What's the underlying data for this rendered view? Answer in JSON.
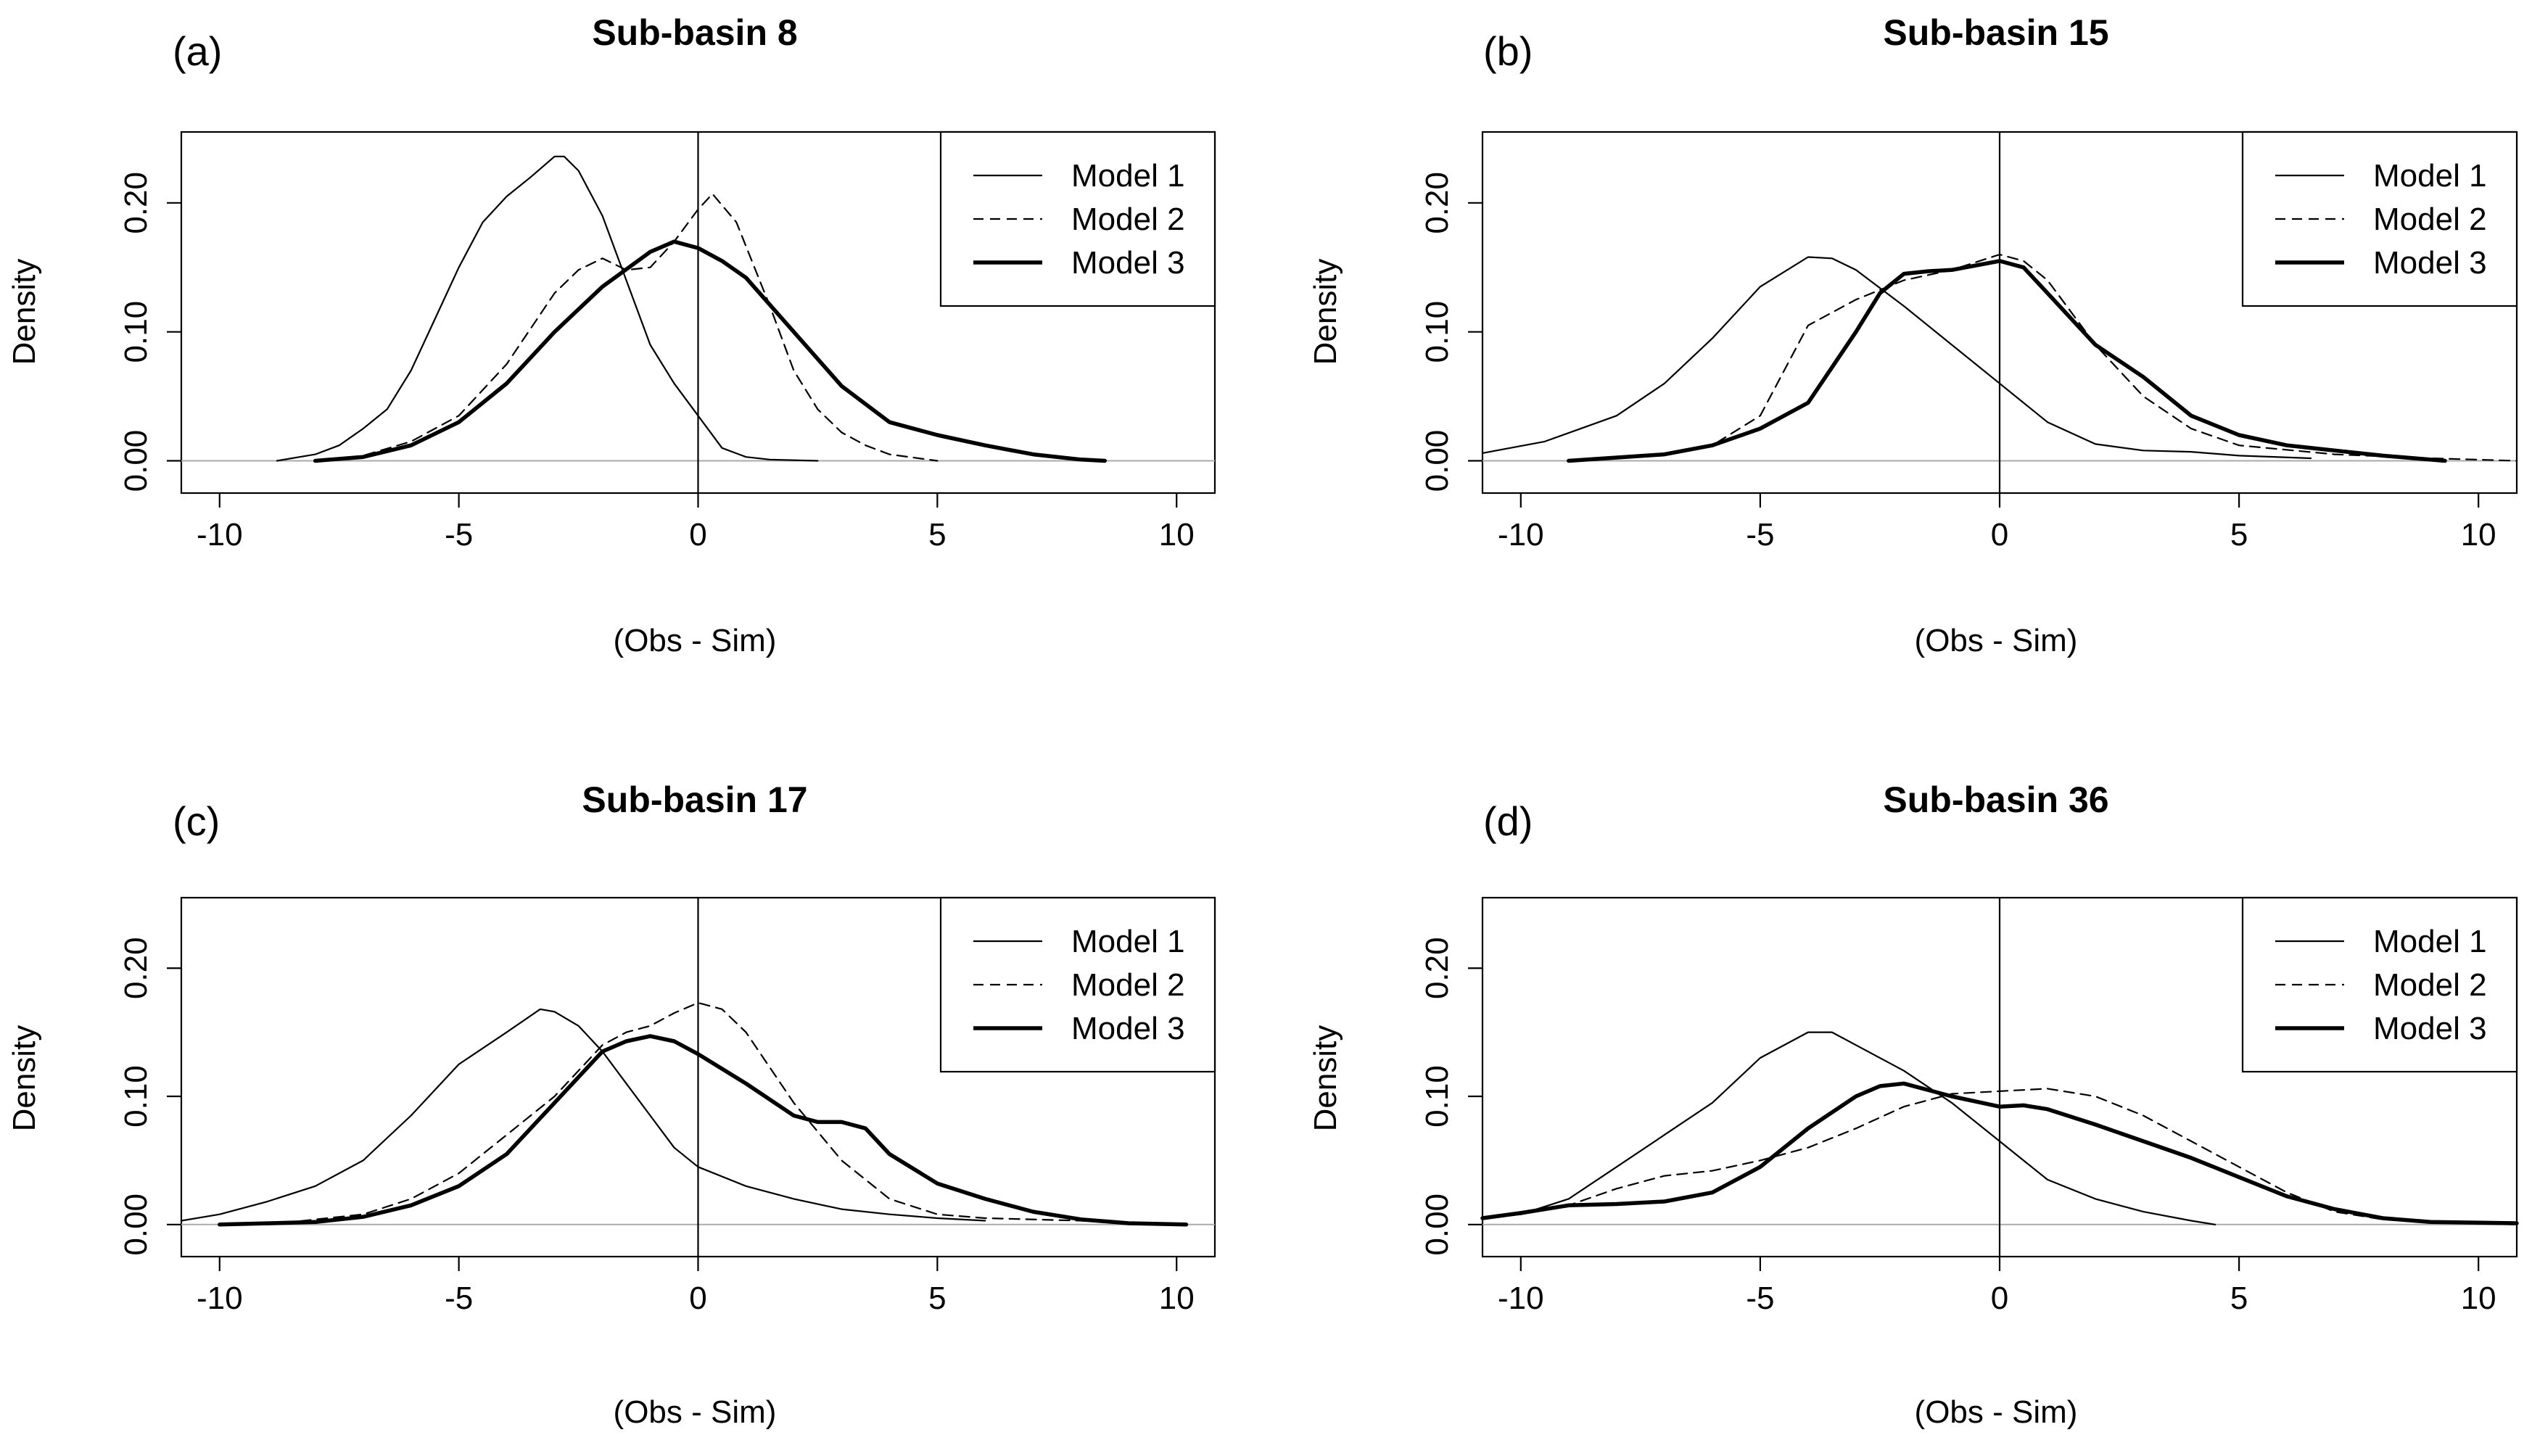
{
  "figure": {
    "panels_layout": "2x2"
  },
  "chart_data": [
    {
      "type": "line",
      "panel_label": "(a)",
      "title": "Sub-basin 8",
      "xlabel": "(Obs - Sim)",
      "ylabel": "Density",
      "xlim": [
        -10.8,
        10.8
      ],
      "ylim": [
        -0.025,
        0.255
      ],
      "xticks": [
        -10,
        -5,
        0,
        5,
        10
      ],
      "yticks": [
        0.0,
        0.1,
        0.2
      ],
      "ytick_labels": [
        "0.00",
        "0.10",
        "0.20"
      ],
      "vline_x": 0,
      "hline_y": 0,
      "legend_position": "top-right",
      "series": [
        {
          "name": "Model 1",
          "style": "solid",
          "x": [
            -8.8,
            -8.0,
            -7.5,
            -7.0,
            -6.5,
            -6.0,
            -5.5,
            -5.0,
            -4.5,
            -4.0,
            -3.5,
            -3.0,
            -2.8,
            -2.5,
            -2.0,
            -1.5,
            -1.0,
            -0.5,
            0.0,
            0.5,
            1.0,
            1.5,
            2.5
          ],
          "y": [
            0.0,
            0.005,
            0.012,
            0.025,
            0.04,
            0.07,
            0.11,
            0.15,
            0.185,
            0.205,
            0.22,
            0.236,
            0.236,
            0.225,
            0.19,
            0.14,
            0.09,
            0.06,
            0.035,
            0.01,
            0.003,
            0.001,
            0.0
          ]
        },
        {
          "name": "Model 2",
          "style": "dashed",
          "x": [
            -8.0,
            -7.0,
            -6.0,
            -5.0,
            -4.0,
            -3.0,
            -2.5,
            -2.0,
            -1.5,
            -1.0,
            -0.5,
            0.0,
            0.3,
            0.8,
            1.5,
            2.0,
            2.5,
            3.0,
            3.5,
            4.0,
            5.0
          ],
          "y": [
            0.0,
            0.004,
            0.015,
            0.035,
            0.075,
            0.13,
            0.148,
            0.157,
            0.148,
            0.15,
            0.17,
            0.195,
            0.207,
            0.185,
            0.12,
            0.07,
            0.04,
            0.022,
            0.012,
            0.005,
            0.0
          ]
        },
        {
          "name": "Model 3",
          "style": "thick",
          "x": [
            -8.0,
            -7.0,
            -6.0,
            -5.0,
            -4.0,
            -3.0,
            -2.0,
            -1.0,
            -0.5,
            0.0,
            0.5,
            1.0,
            2.0,
            3.0,
            4.0,
            5.0,
            6.0,
            7.0,
            8.0,
            8.5
          ],
          "y": [
            0.0,
            0.003,
            0.012,
            0.03,
            0.06,
            0.1,
            0.135,
            0.162,
            0.17,
            0.165,
            0.155,
            0.142,
            0.1,
            0.058,
            0.03,
            0.02,
            0.012,
            0.005,
            0.001,
            0.0
          ]
        }
      ]
    },
    {
      "type": "line",
      "panel_label": "(b)",
      "title": "Sub-basin 15",
      "xlabel": "(Obs - Sim)",
      "ylabel": "Density",
      "xlim": [
        -10.8,
        10.8
      ],
      "ylim": [
        -0.025,
        0.255
      ],
      "xticks": [
        -10,
        -5,
        0,
        5,
        10
      ],
      "yticks": [
        0.0,
        0.1,
        0.2
      ],
      "ytick_labels": [
        "0.00",
        "0.10",
        "0.20"
      ],
      "vline_x": 0,
      "hline_y": 0,
      "legend_position": "top-right",
      "series": [
        {
          "name": "Model 1",
          "style": "solid",
          "x": [
            -10.8,
            -9.5,
            -8.0,
            -7.0,
            -6.0,
            -5.0,
            -4.0,
            -3.5,
            -3.0,
            -2.0,
            -1.0,
            0.0,
            1.0,
            2.0,
            3.0,
            4.0,
            5.0,
            6.5
          ],
          "y": [
            0.006,
            0.015,
            0.035,
            0.06,
            0.095,
            0.135,
            0.158,
            0.157,
            0.148,
            0.12,
            0.09,
            0.06,
            0.03,
            0.013,
            0.008,
            0.007,
            0.004,
            0.002
          ]
        },
        {
          "name": "Model 2",
          "style": "dashed",
          "x": [
            -9.0,
            -7.0,
            -6.0,
            -5.0,
            -4.5,
            -4.0,
            -3.0,
            -2.0,
            -1.0,
            0.0,
            0.5,
            1.0,
            2.0,
            3.0,
            4.0,
            5.0,
            7.0,
            9.0,
            10.8
          ],
          "y": [
            0.0,
            0.005,
            0.012,
            0.035,
            0.07,
            0.105,
            0.125,
            0.14,
            0.148,
            0.16,
            0.155,
            0.14,
            0.09,
            0.05,
            0.025,
            0.012,
            0.005,
            0.002,
            0.0
          ]
        },
        {
          "name": "Model 3",
          "style": "thick",
          "x": [
            -9.0,
            -7.0,
            -6.0,
            -5.0,
            -4.0,
            -3.0,
            -2.5,
            -2.0,
            -1.5,
            -1.0,
            0.0,
            0.5,
            1.0,
            2.0,
            3.0,
            4.0,
            5.0,
            6.0,
            7.0,
            8.0,
            9.3
          ],
          "y": [
            0.0,
            0.005,
            0.012,
            0.025,
            0.045,
            0.1,
            0.13,
            0.145,
            0.147,
            0.148,
            0.155,
            0.15,
            0.13,
            0.09,
            0.065,
            0.035,
            0.02,
            0.012,
            0.008,
            0.004,
            0.0
          ]
        }
      ]
    },
    {
      "type": "line",
      "panel_label": "(c)",
      "title": "Sub-basin 17",
      "xlabel": "(Obs - Sim)",
      "ylabel": "Density",
      "xlim": [
        -10.8,
        10.8
      ],
      "ylim": [
        -0.025,
        0.255
      ],
      "xticks": [
        -10,
        -5,
        0,
        5,
        10
      ],
      "yticks": [
        0.0,
        0.1,
        0.2
      ],
      "ytick_labels": [
        "0.00",
        "0.10",
        "0.20"
      ],
      "vline_x": 0,
      "hline_y": 0,
      "legend_position": "top-right",
      "series": [
        {
          "name": "Model 1",
          "style": "solid",
          "x": [
            -10.8,
            -10.0,
            -9.0,
            -8.0,
            -7.0,
            -6.0,
            -5.0,
            -4.0,
            -3.3,
            -3.0,
            -2.5,
            -2.0,
            -1.5,
            -1.0,
            -0.5,
            0.0,
            1.0,
            2.0,
            3.0,
            4.0,
            5.0,
            6.0
          ],
          "y": [
            0.003,
            0.008,
            0.018,
            0.03,
            0.05,
            0.085,
            0.125,
            0.15,
            0.168,
            0.166,
            0.155,
            0.135,
            0.11,
            0.085,
            0.06,
            0.045,
            0.03,
            0.02,
            0.012,
            0.008,
            0.005,
            0.003
          ]
        },
        {
          "name": "Model 2",
          "style": "dashed",
          "x": [
            -9.0,
            -7.0,
            -6.0,
            -5.0,
            -4.0,
            -3.0,
            -2.0,
            -1.5,
            -1.0,
            -0.5,
            0.0,
            0.5,
            1.0,
            2.0,
            3.0,
            4.0,
            5.0,
            6.0,
            8.0,
            10.0
          ],
          "y": [
            0.0,
            0.008,
            0.02,
            0.04,
            0.07,
            0.1,
            0.14,
            0.15,
            0.155,
            0.165,
            0.173,
            0.168,
            0.15,
            0.095,
            0.05,
            0.02,
            0.008,
            0.005,
            0.003,
            0.0
          ]
        },
        {
          "name": "Model 3",
          "style": "thick",
          "x": [
            -10.0,
            -8.0,
            -7.0,
            -6.0,
            -5.0,
            -4.0,
            -3.0,
            -2.0,
            -1.5,
            -1.0,
            -0.5,
            0.0,
            1.0,
            2.0,
            2.5,
            3.0,
            3.5,
            4.0,
            5.0,
            6.0,
            7.0,
            8.0,
            9.0,
            10.2
          ],
          "y": [
            0.0,
            0.002,
            0.006,
            0.015,
            0.03,
            0.055,
            0.095,
            0.135,
            0.143,
            0.147,
            0.143,
            0.133,
            0.11,
            0.085,
            0.08,
            0.08,
            0.075,
            0.055,
            0.032,
            0.02,
            0.01,
            0.004,
            0.001,
            0.0
          ]
        }
      ]
    },
    {
      "type": "line",
      "panel_label": "(d)",
      "title": "Sub-basin 36",
      "xlabel": "(Obs - Sim)",
      "ylabel": "Density",
      "xlim": [
        -10.8,
        10.8
      ],
      "ylim": [
        -0.025,
        0.255
      ],
      "xticks": [
        -10,
        -5,
        0,
        5,
        10
      ],
      "yticks": [
        0.0,
        0.1,
        0.2
      ],
      "ytick_labels": [
        "0.00",
        "0.10",
        "0.20"
      ],
      "vline_x": 0,
      "hline_y": 0,
      "legend_position": "top-right",
      "series": [
        {
          "name": "Model 1",
          "style": "solid",
          "x": [
            -10.8,
            -10.0,
            -9.0,
            -8.0,
            -7.0,
            -6.0,
            -5.0,
            -4.0,
            -3.5,
            -3.0,
            -2.0,
            -1.0,
            0.0,
            1.0,
            2.0,
            3.0,
            4.0,
            4.5
          ],
          "y": [
            0.005,
            0.008,
            0.02,
            0.045,
            0.07,
            0.095,
            0.13,
            0.15,
            0.15,
            0.14,
            0.12,
            0.095,
            0.065,
            0.035,
            0.02,
            0.01,
            0.003,
            0.0
          ]
        },
        {
          "name": "Model 2",
          "style": "dashed",
          "x": [
            -10.8,
            -10.0,
            -9.0,
            -8.0,
            -7.0,
            -6.0,
            -5.0,
            -4.0,
            -3.0,
            -2.0,
            -1.0,
            0.0,
            1.0,
            2.0,
            3.0,
            4.0,
            5.0,
            6.0,
            7.0,
            8.0,
            9.0,
            10.8
          ],
          "y": [
            0.005,
            0.008,
            0.015,
            0.028,
            0.038,
            0.042,
            0.05,
            0.06,
            0.075,
            0.092,
            0.102,
            0.104,
            0.106,
            0.1,
            0.085,
            0.065,
            0.045,
            0.025,
            0.01,
            0.004,
            0.002,
            0.0
          ]
        },
        {
          "name": "Model 3",
          "style": "thick",
          "x": [
            -10.8,
            -10.0,
            -9.0,
            -8.0,
            -7.0,
            -6.0,
            -5.0,
            -4.0,
            -3.0,
            -2.5,
            -2.0,
            -1.0,
            0.0,
            0.5,
            1.0,
            2.0,
            3.0,
            4.0,
            5.0,
            6.0,
            7.0,
            8.0,
            9.0,
            10.8
          ],
          "y": [
            0.005,
            0.009,
            0.015,
            0.016,
            0.018,
            0.025,
            0.045,
            0.075,
            0.1,
            0.108,
            0.11,
            0.1,
            0.092,
            0.093,
            0.09,
            0.078,
            0.065,
            0.052,
            0.037,
            0.022,
            0.012,
            0.005,
            0.002,
            0.001
          ]
        }
      ]
    }
  ]
}
